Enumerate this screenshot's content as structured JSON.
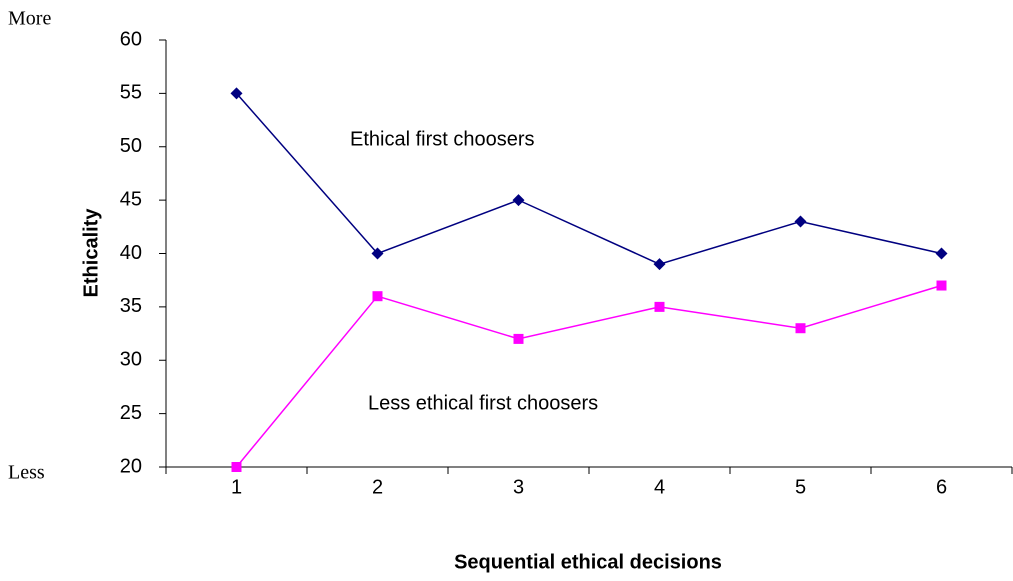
{
  "chart_data": {
    "type": "line",
    "x_label": "Sequential ethical decisions",
    "y_label": "Ethicality",
    "y_top_label": "More",
    "y_bottom_label": "Less",
    "categories": [
      "1",
      "2",
      "3",
      "4",
      "5",
      "6"
    ],
    "series": [
      {
        "name": "Ethical first choosers",
        "color": "#000080",
        "marker": "diamond",
        "values": [
          55,
          40,
          45,
          39,
          43,
          40
        ]
      },
      {
        "name": "Less ethical first choosers",
        "color": "#ff00ff",
        "marker": "square",
        "values": [
          20,
          36,
          32,
          35,
          33,
          37
        ]
      }
    ],
    "ylim": [
      20,
      60
    ],
    "yticks": [
      20,
      25,
      30,
      35,
      40,
      45,
      50,
      55,
      60
    ],
    "grid": false
  }
}
